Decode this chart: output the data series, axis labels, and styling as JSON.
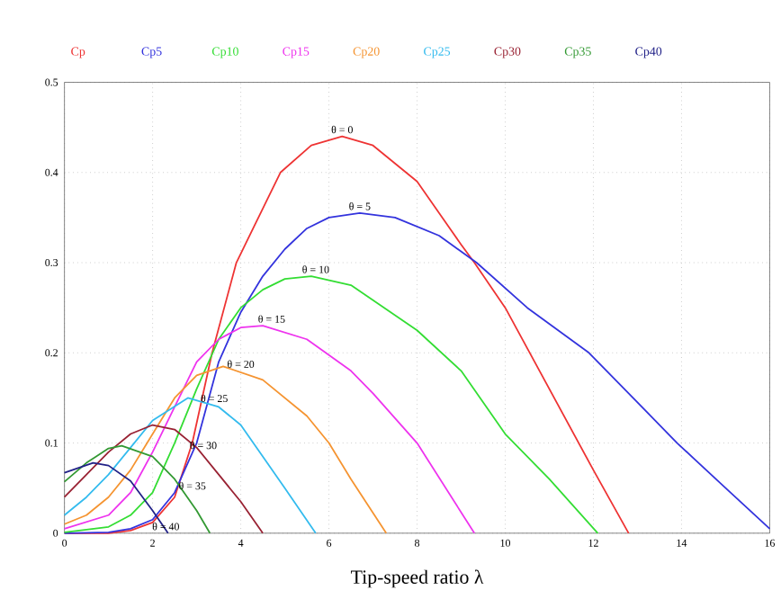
{
  "chart_data": {
    "type": "line",
    "xlabel": "Tip-speed ratio λ",
    "xlim": [
      0,
      16
    ],
    "ylim": [
      0,
      0.5
    ],
    "xticks": [
      0,
      2,
      4,
      6,
      8,
      10,
      12,
      14,
      16
    ],
    "yticks": [
      0,
      0.1,
      0.2,
      0.3,
      0.4,
      0.5
    ],
    "grid": true,
    "legend": "top",
    "marker": "none",
    "line_style": "solid",
    "series": [
      {
        "name": "Cp",
        "color": "#ee3333",
        "x": [
          0,
          1,
          1.5,
          2,
          2.5,
          2.9,
          3.35,
          3.9,
          4.9,
          5.6,
          6.3,
          7,
          8,
          9,
          9.3,
          10,
          11,
          12,
          12.8
        ],
        "values": [
          0,
          0,
          0.003,
          0.012,
          0.04,
          0.1,
          0.2,
          0.3,
          0.4,
          0.43,
          0.44,
          0.43,
          0.39,
          0.32,
          0.3,
          0.25,
          0.16,
          0.07,
          0
        ]
      },
      {
        "name": "Cp5",
        "color": "#3333dd",
        "x": [
          0,
          1,
          1.5,
          2,
          2.5,
          3,
          3.5,
          4,
          4.5,
          5,
          5.5,
          6,
          6.7,
          7.5,
          8.5,
          9.35,
          10.5,
          11.9,
          13,
          13.9,
          15,
          16
        ],
        "values": [
          0,
          0.001,
          0.005,
          0.015,
          0.045,
          0.1,
          0.19,
          0.245,
          0.285,
          0.315,
          0.338,
          0.35,
          0.355,
          0.35,
          0.33,
          0.3,
          0.25,
          0.2,
          0.145,
          0.1,
          0.05,
          0.005
        ]
      },
      {
        "name": "Cp10",
        "color": "#33dd33",
        "x": [
          0,
          1,
          1.5,
          2,
          2.5,
          3,
          3.5,
          4,
          4.5,
          5,
          5.6,
          6.5,
          8,
          9,
          10,
          11,
          12.1
        ],
        "values": [
          0.001,
          0.007,
          0.02,
          0.045,
          0.1,
          0.16,
          0.215,
          0.25,
          0.27,
          0.282,
          0.285,
          0.275,
          0.225,
          0.18,
          0.11,
          0.06,
          0
        ]
      },
      {
        "name": "Cp15",
        "color": "#ee33ee",
        "x": [
          0,
          1,
          1.5,
          2,
          2.5,
          3,
          3.5,
          4,
          4.5,
          5.5,
          6.5,
          7,
          8,
          9.3
        ],
        "values": [
          0.005,
          0.02,
          0.045,
          0.09,
          0.14,
          0.19,
          0.215,
          0.228,
          0.23,
          0.215,
          0.18,
          0.155,
          0.1,
          0
        ]
      },
      {
        "name": "Cp20",
        "color": "#f59431",
        "x": [
          0,
          0.5,
          1,
          1.5,
          2,
          2.5,
          3,
          3.6,
          4.5,
          5.5,
          6,
          6.5,
          7.3
        ],
        "values": [
          0.01,
          0.02,
          0.04,
          0.07,
          0.11,
          0.15,
          0.175,
          0.185,
          0.17,
          0.13,
          0.1,
          0.06,
          0
        ]
      },
      {
        "name": "Cp25",
        "color": "#33bbee",
        "x": [
          0,
          0.5,
          1,
          1.5,
          2,
          2.8,
          3.5,
          4,
          4.5,
          5,
          5.7
        ],
        "values": [
          0.02,
          0.04,
          0.065,
          0.095,
          0.125,
          0.15,
          0.14,
          0.12,
          0.085,
          0.05,
          0
        ]
      },
      {
        "name": "Cp30",
        "color": "#992233",
        "x": [
          0,
          0.5,
          1,
          1.5,
          2,
          2.5,
          3,
          3.5,
          4,
          4.5
        ],
        "values": [
          0.04,
          0.065,
          0.09,
          0.11,
          0.12,
          0.115,
          0.095,
          0.065,
          0.035,
          0
        ]
      },
      {
        "name": "Cp35",
        "color": "#339933",
        "x": [
          0,
          0.5,
          1,
          1.3,
          2,
          2.5,
          3,
          3.3
        ],
        "values": [
          0.057,
          0.078,
          0.094,
          0.097,
          0.085,
          0.06,
          0.025,
          0
        ]
      },
      {
        "name": "Cp40",
        "color": "#222288",
        "x": [
          0,
          0.65,
          1,
          1.5,
          2,
          2.35
        ],
        "values": [
          0.067,
          0.078,
          0.075,
          0.058,
          0.025,
          0
        ]
      }
    ],
    "annotations": [
      {
        "text": "θ = 0",
        "x": 6.3,
        "y": 0.44
      },
      {
        "text": "θ = 5",
        "x": 6.7,
        "y": 0.355
      },
      {
        "text": "θ = 10",
        "x": 5.7,
        "y": 0.285
      },
      {
        "text": "θ = 15",
        "x": 4.7,
        "y": 0.23
      },
      {
        "text": "θ = 20",
        "x": 4.0,
        "y": 0.18
      },
      {
        "text": "θ = 25",
        "x": 3.4,
        "y": 0.142
      },
      {
        "text": "θ = 30",
        "x": 3.15,
        "y": 0.09
      },
      {
        "text": "θ = 35",
        "x": 2.9,
        "y": 0.045
      },
      {
        "text": "θ = 40",
        "x": 2.3,
        "y": 0.0
      }
    ]
  }
}
